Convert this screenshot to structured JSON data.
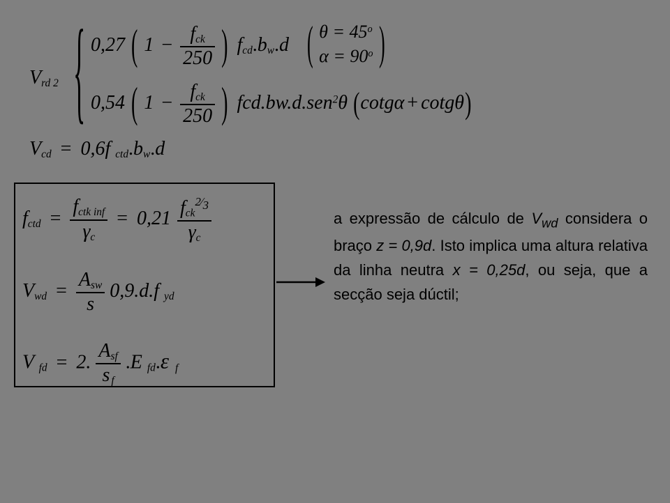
{
  "eq": {
    "Vrd2": "V",
    "Vrd2_sub": "rd 2",
    "coef1": "0,27",
    "one": "1",
    "minus": "−",
    "fck": "f",
    "fck_sub": "ck",
    "n250": "250",
    "fcd": "f",
    "fcd_sub": "cd",
    "bw": "b",
    "bw_sub": "w",
    "d": "d",
    "theta45": "θ = 45",
    "deg_o": "o",
    "alpha90": "α = 90",
    "coef2": "0,54",
    "fcdbwd": "fcd.bw.d.sen",
    "two": "2",
    "theta": "θ",
    "lpar": "(",
    "rpar": ")",
    "cotg_a": "cotgα",
    "plus": "+",
    "cotg_t": "cotgθ",
    "Vcd": "V",
    "Vcd_sub": "cd",
    "eq_sign": "=",
    "coef06": "0,6f",
    "ctd_sub": "ctd",
    "dot": ".",
    "fctd": "f",
    "fctd_sub": "ctd",
    "fctkinf": "f",
    "fctkinf_sub": "ctk inf",
    "gamma": "γ",
    "gamma_sub": "c",
    "coef021": "0,21",
    "exp23a": "2",
    "exp23b": "3",
    "slash": "⁄",
    "Vwd": "V",
    "Vwd_sub": "wd",
    "Asw": "A",
    "Asw_sub": "sw",
    "s": "s",
    "coef09": "0,9.d.f",
    "yd_sub": "yd",
    "Vfd": "V",
    "Vfd_sub": "fd",
    "two_dot": "2.",
    "Asf": "A",
    "Asf_sub": "sf",
    "sf": "s",
    "sf_sub": "f",
    "Efd": "E",
    "Efd_sub": "fd",
    "eps": "ε",
    "eps_sub": "f"
  },
  "text": {
    "para": "a expressão de cálculo de <i>V<sub>wd</sub></i> considera o braço <i>z = 0,9d</i>. Isto implica uma altura relativa da linha neutra <i>x = 0,25d</i>, ou seja, que a secção seja dúctil;"
  },
  "style": {
    "bg": "#808080",
    "ink": "#000000",
    "eq_fontsize": 28,
    "body_fontsize": 22
  }
}
